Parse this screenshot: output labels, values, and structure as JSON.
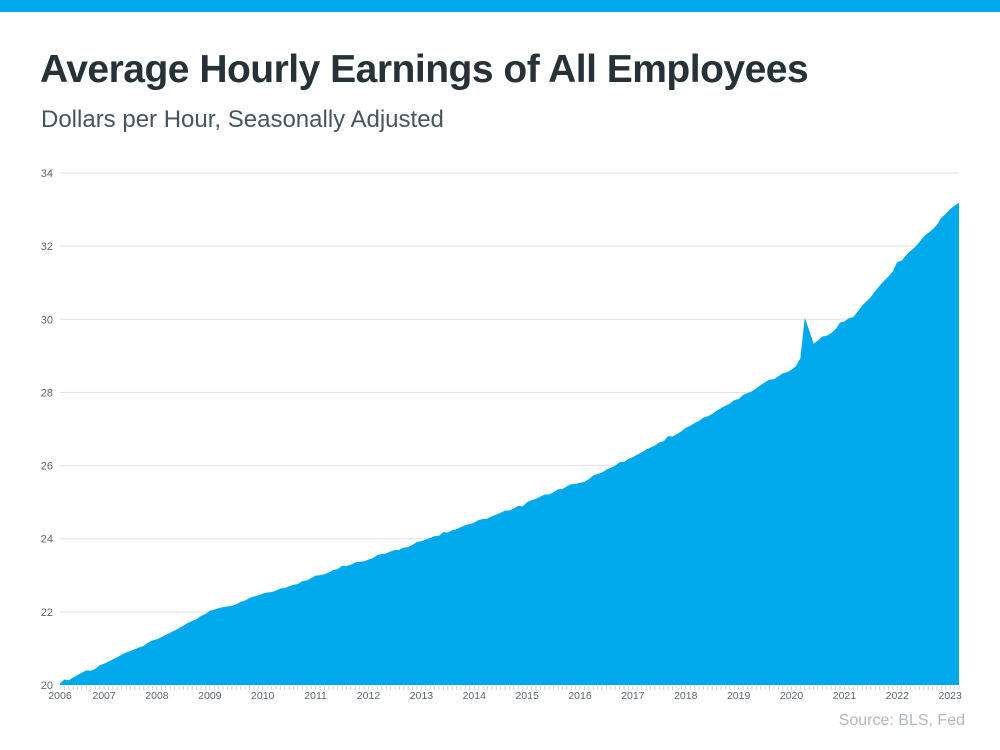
{
  "page": {
    "title": "Average Hourly Earnings of All Employees",
    "subtitle": "Dollars per Hour, Seasonally Adjusted",
    "source": "Source: BLS, Fed"
  },
  "colors": {
    "accent": "#00A8EC",
    "title_text": "#263238",
    "subtitle_text": "#46555E",
    "axis_text": "#5B6772",
    "gridline": "#DEE1E4",
    "tick": "#CDD3D8",
    "source_text": "#AFB9C2",
    "background": "#FFFFFF"
  },
  "chart_data": {
    "type": "area",
    "title": "Average Hourly Earnings of All Employees",
    "subtitle": "Dollars per Hour, Seasonally Adjusted",
    "unit": "dollars per hour",
    "frequency": "monthly",
    "x_start": "2006-03",
    "x_end": "2023-03",
    "ylim": [
      20,
      34
    ],
    "yticks": [
      20,
      22,
      24,
      26,
      28,
      30,
      32,
      34
    ],
    "year_labels": [
      2006,
      2007,
      2008,
      2009,
      2010,
      2011,
      2012,
      2013,
      2014,
      2015,
      2016,
      2017,
      2018,
      2019,
      2020,
      2021,
      2022,
      2023
    ],
    "grid": "horizontal",
    "legend": "none",
    "series": [
      {
        "name": "Average Hourly Earnings",
        "values": [
          20.04,
          20.15,
          20.13,
          20.21,
          20.27,
          20.34,
          20.4,
          20.39,
          20.44,
          20.54,
          20.58,
          20.64,
          20.7,
          20.76,
          20.83,
          20.89,
          20.93,
          20.98,
          21.03,
          21.07,
          21.16,
          21.22,
          21.25,
          21.31,
          21.37,
          21.43,
          21.49,
          21.55,
          21.62,
          21.7,
          21.75,
          21.8,
          21.89,
          21.94,
          22.03,
          22.06,
          22.1,
          22.13,
          22.15,
          22.16,
          22.21,
          22.27,
          22.31,
          22.38,
          22.42,
          22.45,
          22.5,
          22.53,
          22.54,
          22.58,
          22.64,
          22.65,
          22.7,
          22.74,
          22.76,
          22.84,
          22.86,
          22.92,
          22.99,
          23.0,
          23.03,
          23.08,
          23.14,
          23.17,
          23.26,
          23.25,
          23.29,
          23.35,
          23.37,
          23.38,
          23.43,
          23.47,
          23.55,
          23.58,
          23.6,
          23.65,
          23.69,
          23.7,
          23.76,
          23.77,
          23.83,
          23.91,
          23.93,
          23.98,
          24.02,
          24.07,
          24.08,
          24.18,
          24.17,
          24.23,
          24.26,
          24.32,
          24.37,
          24.4,
          24.44,
          24.51,
          24.54,
          24.55,
          24.61,
          24.66,
          24.71,
          24.77,
          24.77,
          24.83,
          24.9,
          24.88,
          25.0,
          25.05,
          25.09,
          25.15,
          25.21,
          25.21,
          25.27,
          25.35,
          25.36,
          25.43,
          25.49,
          25.5,
          25.53,
          25.55,
          25.63,
          25.73,
          25.77,
          25.81,
          25.89,
          25.94,
          26.0,
          26.09,
          26.1,
          26.18,
          26.23,
          26.3,
          26.36,
          26.44,
          26.49,
          26.55,
          26.63,
          26.67,
          26.81,
          26.79,
          26.86,
          26.94,
          27.03,
          27.09,
          27.16,
          27.22,
          27.31,
          27.35,
          27.41,
          27.5,
          27.57,
          27.64,
          27.69,
          27.79,
          27.82,
          27.93,
          27.98,
          28.03,
          28.11,
          28.2,
          28.28,
          28.35,
          28.36,
          28.44,
          28.52,
          28.55,
          28.62,
          28.72,
          28.93,
          30.04,
          29.7,
          29.33,
          29.42,
          29.53,
          29.55,
          29.62,
          29.73,
          29.91,
          29.94,
          30.03,
          30.06,
          30.21,
          30.37,
          30.49,
          30.61,
          30.77,
          30.92,
          31.05,
          31.17,
          31.31,
          31.57,
          31.6,
          31.75,
          31.87,
          31.97,
          32.11,
          32.26,
          32.36,
          32.46,
          32.58,
          32.78,
          32.88,
          33.01,
          33.11,
          33.18
        ]
      }
    ]
  }
}
